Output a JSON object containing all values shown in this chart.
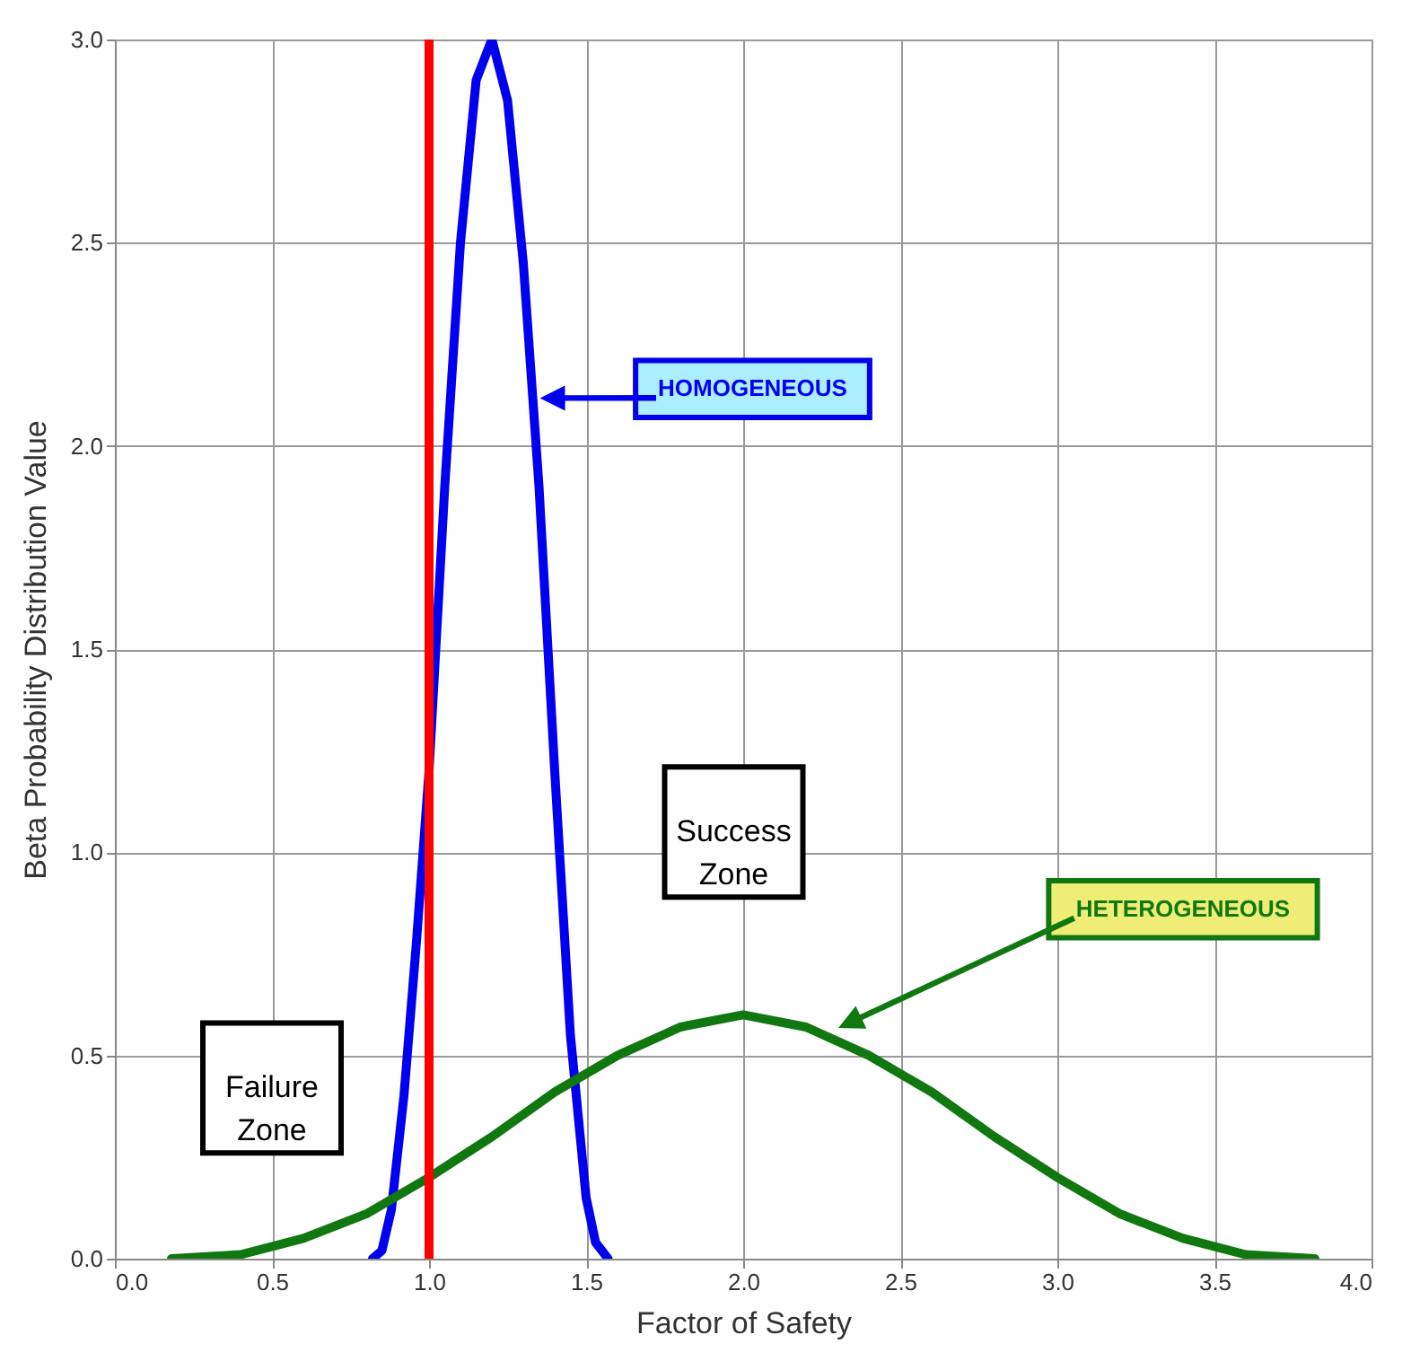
{
  "chart_data": {
    "type": "line",
    "xlabel": "Factor of Safety",
    "ylabel": "Beta Probability Distribution Value",
    "xlim": [
      0,
      4
    ],
    "ylim": [
      0,
      3
    ],
    "xticks": [
      {
        "value": 0,
        "label": "0.0"
      },
      {
        "value": 0.5,
        "label": "0.5"
      },
      {
        "value": 1,
        "label": "1.0"
      },
      {
        "value": 1.5,
        "label": "1.5"
      },
      {
        "value": 2,
        "label": "2.0"
      },
      {
        "value": 2.5,
        "label": "2.5"
      },
      {
        "value": 3,
        "label": "3.0"
      },
      {
        "value": 3.5,
        "label": "3.5"
      },
      {
        "value": 4,
        "label": "4.0"
      }
    ],
    "yticks": [
      {
        "value": 0,
        "label": "0.0"
      },
      {
        "value": 0.5,
        "label": "0.5"
      },
      {
        "value": 1,
        "label": "1.0"
      },
      {
        "value": 1.5,
        "label": "1.5"
      },
      {
        "value": 2,
        "label": "2.0"
      },
      {
        "value": 2.5,
        "label": "2.5"
      },
      {
        "value": 3,
        "label": "3.0"
      }
    ],
    "grid": true,
    "marker": "none",
    "line_style": "solid",
    "series": [
      {
        "color": "#0000ee",
        "x": [
          0.82,
          0.85,
          0.88,
          0.92,
          0.96,
          1.0,
          1.05,
          1.1,
          1.15,
          1.2,
          1.25,
          1.3,
          1.35,
          1.4,
          1.45,
          1.5,
          1.53,
          1.57
        ],
        "values": [
          0,
          0.02,
          0.12,
          0.4,
          0.78,
          1.2,
          1.9,
          2.5,
          2.9,
          3.0,
          2.85,
          2.45,
          1.9,
          1.2,
          0.55,
          0.15,
          0.04,
          0
        ]
      },
      {
        "color": "#117711",
        "x": [
          0.18,
          0.4,
          0.6,
          0.8,
          1.0,
          1.2,
          1.4,
          1.6,
          1.8,
          2.0,
          2.2,
          2.4,
          2.6,
          2.8,
          3.0,
          3.2,
          3.4,
          3.6,
          3.82
        ],
        "values": [
          0,
          0.01,
          0.05,
          0.11,
          0.2,
          0.3,
          0.41,
          0.5,
          0.57,
          0.6,
          0.57,
          0.5,
          0.41,
          0.3,
          0.2,
          0.11,
          0.05,
          0.01,
          0
        ]
      }
    ],
    "ref_lines": [
      {
        "axis": "x",
        "value": 1.0,
        "color": "#ff0000"
      }
    ],
    "annotations": [
      "HOMOGENEOUS",
      "HETEROGENEOUS",
      "Success Zone",
      "Failure Zone"
    ]
  }
}
